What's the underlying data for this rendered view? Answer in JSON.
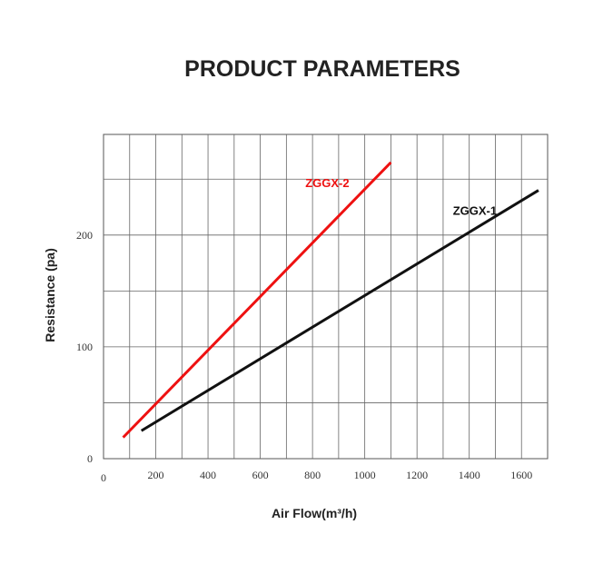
{
  "chart_data": {
    "type": "line",
    "title": "PRODUCT PARAMETERS",
    "x_label": "Air Flow(m³/h)",
    "y_label": "Resistance (pa)",
    "xlim": [
      0,
      1700
    ],
    "ylim": [
      0,
      290
    ],
    "xticks": [
      0,
      200,
      400,
      600,
      800,
      1000,
      1200,
      1400,
      1600
    ],
    "yticks": [
      0,
      100,
      200
    ],
    "x_grid": [
      100,
      200,
      300,
      400,
      500,
      600,
      700,
      800,
      900,
      1000,
      1100,
      1200,
      1300,
      1400,
      1500,
      1600
    ],
    "y_grid": [
      50,
      100,
      150,
      200,
      250
    ],
    "series": [
      {
        "name": "ZGGX-2",
        "color": "#ee1111",
        "x": [
          75,
          1100
        ],
        "values": [
          19,
          265
        ]
      },
      {
        "name": "ZGGX-1",
        "color": "#111111",
        "x": [
          145,
          1665
        ],
        "values": [
          25,
          240
        ]
      }
    ]
  }
}
